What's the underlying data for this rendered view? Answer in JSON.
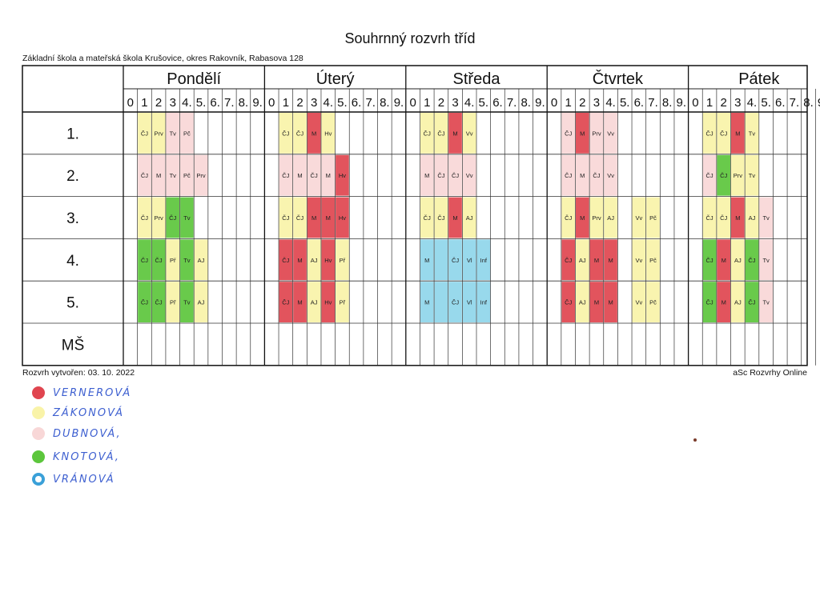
{
  "title": "Souhrnný rozvrh tříd",
  "subtitle": "Základní škola a mateřská škola Krušovice, okres Rakovník, Rabasova 128",
  "footer_left": "Rozvrh vytvořen: 03. 10. 2022",
  "footer_right": "aSc Rozvrhy Online",
  "periods": [
    "0",
    "1",
    "2",
    "3",
    "4.",
    "5.",
    "6.",
    "7.",
    "8.",
    "9."
  ],
  "rows": [
    "1.",
    "2.",
    "3.",
    "4.",
    "5.",
    "MŠ"
  ],
  "colors": {
    "red": "#e0454f",
    "yellow": "#f9f3a8",
    "pink": "#f8d7d7",
    "green": "#5cc63c",
    "blue": "#8fd6ea"
  },
  "days": [
    {
      "name": "Pondělí",
      "cells": [
        {
          "r": 0,
          "p": 1,
          "t": "ČJ",
          "c": "yellow"
        },
        {
          "r": 0,
          "p": 2,
          "t": "Prv",
          "c": "yellow"
        },
        {
          "r": 0,
          "p": 3,
          "t": "Tv",
          "c": "pink"
        },
        {
          "r": 0,
          "p": 4,
          "t": "Pč",
          "c": "pink"
        },
        {
          "r": 1,
          "p": 1,
          "t": "ČJ",
          "c": "pink"
        },
        {
          "r": 1,
          "p": 2,
          "t": "M",
          "c": "pink"
        },
        {
          "r": 1,
          "p": 3,
          "t": "Tv",
          "c": "pink"
        },
        {
          "r": 1,
          "p": 4,
          "t": "Pč",
          "c": "pink"
        },
        {
          "r": 1,
          "p": 5,
          "t": "Prv",
          "c": "pink"
        },
        {
          "r": 2,
          "p": 1,
          "t": "ČJ",
          "c": "yellow"
        },
        {
          "r": 2,
          "p": 2,
          "t": "Prv",
          "c": "yellow"
        },
        {
          "r": 2,
          "p": 3,
          "t": "ČJ",
          "c": "green"
        },
        {
          "r": 2,
          "p": 4,
          "t": "Tv",
          "c": "green"
        },
        {
          "r": 3,
          "p": 1,
          "t": "ČJ",
          "c": "green"
        },
        {
          "r": 3,
          "p": 2,
          "t": "ČJ",
          "c": "green"
        },
        {
          "r": 3,
          "p": 3,
          "t": "Př",
          "c": "yellow"
        },
        {
          "r": 3,
          "p": 4,
          "t": "Tv",
          "c": "green"
        },
        {
          "r": 3,
          "p": 5,
          "t": "AJ",
          "c": "yellow"
        },
        {
          "r": 4,
          "p": 1,
          "t": "ČJ",
          "c": "green"
        },
        {
          "r": 4,
          "p": 2,
          "t": "ČJ",
          "c": "green"
        },
        {
          "r": 4,
          "p": 3,
          "t": "Př",
          "c": "yellow"
        },
        {
          "r": 4,
          "p": 4,
          "t": "Tv",
          "c": "green"
        },
        {
          "r": 4,
          "p": 5,
          "t": "AJ",
          "c": "yellow"
        }
      ]
    },
    {
      "name": "Úterý",
      "cells": [
        {
          "r": 0,
          "p": 1,
          "t": "ČJ",
          "c": "yellow"
        },
        {
          "r": 0,
          "p": 2,
          "t": "ČJ",
          "c": "yellow"
        },
        {
          "r": 0,
          "p": 3,
          "t": "M",
          "c": "red"
        },
        {
          "r": 0,
          "p": 4,
          "t": "Hv",
          "c": "yellow"
        },
        {
          "r": 1,
          "p": 1,
          "t": "ČJ",
          "c": "pink"
        },
        {
          "r": 1,
          "p": 2,
          "t": "M",
          "c": "pink"
        },
        {
          "r": 1,
          "p": 3,
          "t": "ČJ",
          "c": "pink"
        },
        {
          "r": 1,
          "p": 4,
          "t": "M",
          "c": "pink"
        },
        {
          "r": 1,
          "p": 5,
          "t": "Hv",
          "c": "red"
        },
        {
          "r": 2,
          "p": 1,
          "t": "ČJ",
          "c": "yellow"
        },
        {
          "r": 2,
          "p": 2,
          "t": "ČJ",
          "c": "yellow"
        },
        {
          "r": 2,
          "p": 3,
          "t": "M",
          "c": "red"
        },
        {
          "r": 2,
          "p": 4,
          "t": "M",
          "c": "red"
        },
        {
          "r": 2,
          "p": 5,
          "t": "Hv",
          "c": "red"
        },
        {
          "r": 3,
          "p": 1,
          "t": "ČJ",
          "c": "red"
        },
        {
          "r": 3,
          "p": 2,
          "t": "M",
          "c": "red"
        },
        {
          "r": 3,
          "p": 3,
          "t": "AJ",
          "c": "yellow"
        },
        {
          "r": 3,
          "p": 4,
          "t": "Hv",
          "c": "red"
        },
        {
          "r": 3,
          "p": 5,
          "t": "Př",
          "c": "yellow"
        },
        {
          "r": 4,
          "p": 1,
          "t": "ČJ",
          "c": "red"
        },
        {
          "r": 4,
          "p": 2,
          "t": "M",
          "c": "red"
        },
        {
          "r": 4,
          "p": 3,
          "t": "AJ",
          "c": "yellow"
        },
        {
          "r": 4,
          "p": 4,
          "t": "Hv",
          "c": "red"
        },
        {
          "r": 4,
          "p": 5,
          "t": "Př",
          "c": "yellow"
        }
      ]
    },
    {
      "name": "Středa",
      "cells": [
        {
          "r": 0,
          "p": 1,
          "t": "ČJ",
          "c": "yellow"
        },
        {
          "r": 0,
          "p": 2,
          "t": "ČJ",
          "c": "yellow"
        },
        {
          "r": 0,
          "p": 3,
          "t": "M",
          "c": "red"
        },
        {
          "r": 0,
          "p": 4,
          "t": "Vv",
          "c": "yellow"
        },
        {
          "r": 1,
          "p": 1,
          "t": "M",
          "c": "pink"
        },
        {
          "r": 1,
          "p": 2,
          "t": "ČJ",
          "c": "pink"
        },
        {
          "r": 1,
          "p": 3,
          "t": "ČJ",
          "c": "pink"
        },
        {
          "r": 1,
          "p": 4,
          "t": "Vv",
          "c": "pink"
        },
        {
          "r": 2,
          "p": 1,
          "t": "ČJ",
          "c": "yellow"
        },
        {
          "r": 2,
          "p": 2,
          "t": "ČJ",
          "c": "yellow"
        },
        {
          "r": 2,
          "p": 3,
          "t": "M",
          "c": "red"
        },
        {
          "r": 2,
          "p": 4,
          "t": "AJ",
          "c": "yellow"
        },
        {
          "r": 3,
          "p": 1,
          "t": "M",
          "c": "blue"
        },
        {
          "r": 3,
          "p": 2,
          "t": "",
          "c": "blue"
        },
        {
          "r": 3,
          "p": 3,
          "t": "ČJ",
          "c": "blue"
        },
        {
          "r": 3,
          "p": 4,
          "t": "Vl",
          "c": "blue"
        },
        {
          "r": 3,
          "p": 5,
          "t": "Inf",
          "c": "blue"
        },
        {
          "r": 4,
          "p": 1,
          "t": "M",
          "c": "blue"
        },
        {
          "r": 4,
          "p": 2,
          "t": "",
          "c": "blue"
        },
        {
          "r": 4,
          "p": 3,
          "t": "ČJ",
          "c": "blue"
        },
        {
          "r": 4,
          "p": 4,
          "t": "Vl",
          "c": "blue"
        },
        {
          "r": 4,
          "p": 5,
          "t": "Inf",
          "c": "blue"
        }
      ]
    },
    {
      "name": "Čtvrtek",
      "cells": [
        {
          "r": 0,
          "p": 1,
          "t": "ČJ",
          "c": "pink"
        },
        {
          "r": 0,
          "p": 2,
          "t": "M",
          "c": "red"
        },
        {
          "r": 0,
          "p": 3,
          "t": "Prv",
          "c": "pink"
        },
        {
          "r": 0,
          "p": 4,
          "t": "Vv",
          "c": "pink"
        },
        {
          "r": 1,
          "p": 1,
          "t": "ČJ",
          "c": "pink"
        },
        {
          "r": 1,
          "p": 2,
          "t": "M",
          "c": "pink"
        },
        {
          "r": 1,
          "p": 3,
          "t": "ČJ",
          "c": "pink"
        },
        {
          "r": 1,
          "p": 4,
          "t": "Vv",
          "c": "pink"
        },
        {
          "r": 2,
          "p": 1,
          "t": "ČJ",
          "c": "yellow"
        },
        {
          "r": 2,
          "p": 2,
          "t": "M",
          "c": "red"
        },
        {
          "r": 2,
          "p": 3,
          "t": "Prv",
          "c": "yellow"
        },
        {
          "r": 2,
          "p": 4,
          "t": "AJ",
          "c": "yellow"
        },
        {
          "r": 2,
          "p": 6,
          "t": "Vv",
          "c": "yellow"
        },
        {
          "r": 2,
          "p": 7,
          "t": "Pč",
          "c": "yellow"
        },
        {
          "r": 3,
          "p": 1,
          "t": "ČJ",
          "c": "red"
        },
        {
          "r": 3,
          "p": 2,
          "t": "AJ",
          "c": "yellow"
        },
        {
          "r": 3,
          "p": 3,
          "t": "M",
          "c": "red"
        },
        {
          "r": 3,
          "p": 4,
          "t": "M",
          "c": "red"
        },
        {
          "r": 3,
          "p": 6,
          "t": "Vv",
          "c": "yellow"
        },
        {
          "r": 3,
          "p": 7,
          "t": "Pč",
          "c": "yellow"
        },
        {
          "r": 4,
          "p": 1,
          "t": "ČJ",
          "c": "red"
        },
        {
          "r": 4,
          "p": 2,
          "t": "AJ",
          "c": "yellow"
        },
        {
          "r": 4,
          "p": 3,
          "t": "M",
          "c": "red"
        },
        {
          "r": 4,
          "p": 4,
          "t": "M",
          "c": "red"
        },
        {
          "r": 4,
          "p": 6,
          "t": "Vv",
          "c": "yellow"
        },
        {
          "r": 4,
          "p": 7,
          "t": "Pč",
          "c": "yellow"
        }
      ]
    },
    {
      "name": "Pátek",
      "cells": [
        {
          "r": 0,
          "p": 1,
          "t": "ČJ",
          "c": "yellow"
        },
        {
          "r": 0,
          "p": 2,
          "t": "ČJ",
          "c": "yellow"
        },
        {
          "r": 0,
          "p": 3,
          "t": "M",
          "c": "red"
        },
        {
          "r": 0,
          "p": 4,
          "t": "Tv",
          "c": "yellow"
        },
        {
          "r": 1,
          "p": 1,
          "t": "ČJ",
          "c": "pink"
        },
        {
          "r": 1,
          "p": 2,
          "t": "ČJ",
          "c": "green"
        },
        {
          "r": 1,
          "p": 3,
          "t": "Prv",
          "c": "yellow"
        },
        {
          "r": 1,
          "p": 4,
          "t": "Tv",
          "c": "yellow"
        },
        {
          "r": 2,
          "p": 1,
          "t": "ČJ",
          "c": "yellow"
        },
        {
          "r": 2,
          "p": 2,
          "t": "ČJ",
          "c": "yellow"
        },
        {
          "r": 2,
          "p": 3,
          "t": "M",
          "c": "red"
        },
        {
          "r": 2,
          "p": 4,
          "t": "AJ",
          "c": "yellow"
        },
        {
          "r": 2,
          "p": 5,
          "t": "Tv",
          "c": "pink"
        },
        {
          "r": 3,
          "p": 1,
          "t": "ČJ",
          "c": "green"
        },
        {
          "r": 3,
          "p": 2,
          "t": "M",
          "c": "red"
        },
        {
          "r": 3,
          "p": 3,
          "t": "AJ",
          "c": "yellow"
        },
        {
          "r": 3,
          "p": 4,
          "t": "ČJ",
          "c": "green"
        },
        {
          "r": 3,
          "p": 5,
          "t": "Tv",
          "c": "pink"
        },
        {
          "r": 4,
          "p": 1,
          "t": "ČJ",
          "c": "green"
        },
        {
          "r": 4,
          "p": 2,
          "t": "M",
          "c": "red"
        },
        {
          "r": 4,
          "p": 3,
          "t": "AJ",
          "c": "yellow"
        },
        {
          "r": 4,
          "p": 4,
          "t": "ČJ",
          "c": "green"
        },
        {
          "r": 4,
          "p": 5,
          "t": "Tv",
          "c": "pink"
        }
      ]
    }
  ],
  "legend": [
    {
      "label": "VERNEROVÁ",
      "color": "red"
    },
    {
      "label": "ZÁKONOVÁ",
      "color": "yellow"
    },
    {
      "label": "DUBNOVÁ,",
      "color": "pink"
    },
    {
      "label": "KNOTOVÁ,",
      "color": "green"
    },
    {
      "label": "VRÁNOVÁ",
      "color": "blue"
    }
  ]
}
